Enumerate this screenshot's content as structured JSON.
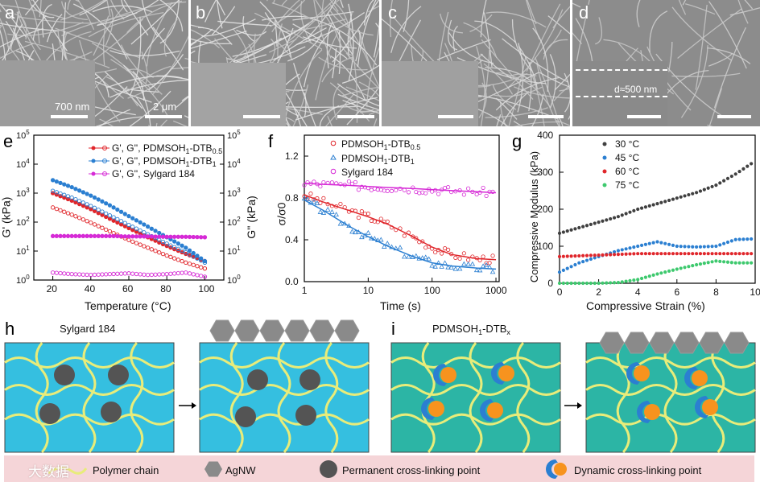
{
  "sem": {
    "panels": [
      {
        "label": "a",
        "scale_inset": "700 nm",
        "scale_main": "2 μm"
      },
      {
        "label": "b"
      },
      {
        "label": "c"
      },
      {
        "label": "d",
        "thickness": "d≈500 nm"
      }
    ]
  },
  "panel_e": {
    "label": "e",
    "ylabel_left": "G' (kPa)",
    "ylabel_right": "G'' (kPa)",
    "xlabel": "Temperature (°C)",
    "legend": [
      "G', G'', PDMSOH",
      "G', G'', PDMSOH",
      "G', G'', Sylgard 184"
    ],
    "legend_suffix": [
      "-DTB",
      "-DTB"
    ],
    "legend_sub": [
      "1",
      "0.5",
      "1",
      "1"
    ]
  },
  "panel_f": {
    "label": "f",
    "ylabel": "σ/σ0",
    "xlabel": "Time (s)",
    "legend": [
      "PDMSOH",
      "PDMSOH",
      "Sylgard 184"
    ],
    "legend_suffix": [
      "-DTB",
      "-DTB"
    ],
    "legend_sub": [
      "1",
      "0.5",
      "1",
      "1"
    ]
  },
  "panel_g": {
    "label": "g",
    "ylabel": "Compressive Modulus (kPa)",
    "xlabel": "Compressive Strain (%)",
    "legend": [
      "30 °C",
      "45 °C",
      "60 °C",
      "75 °C"
    ]
  },
  "panel_h": {
    "label": "h",
    "title": "Sylgard 184"
  },
  "panel_i": {
    "label": "i",
    "title_main": "PDMSOH",
    "title_sub": "1",
    "title_tail": "-DTB",
    "title_sub2": "x"
  },
  "legend_bar": {
    "polymer": "Polymer chain",
    "agnw": "AgNW",
    "permanent": "Permanent cross-linking point",
    "dynamic": "Dynamic cross-linking point"
  },
  "watermark": "大数据",
  "colors": {
    "red": "#e0262b",
    "blue": "#2b7fd1",
    "magenta": "#d62ad6",
    "dark": "#404040",
    "green": "#3ec96e",
    "cyan": "#35bfe0",
    "teal": "#2cb5a5",
    "chain": "#e8ec7a",
    "orange": "#f7931e",
    "node": "#545454"
  },
  "chart_data": [
    {
      "type": "scatter",
      "title": "e",
      "xlabel": "Temperature (°C)",
      "ylabel": "G' (kPa)",
      "xlim": [
        10,
        110
      ],
      "ylim_log10": [
        0,
        5
      ],
      "x": [
        20,
        30,
        40,
        50,
        60,
        70,
        80,
        90,
        100
      ],
      "series": [
        {
          "name": "G' PDMSOH1-DTB0.5",
          "values": [
            1000,
            550,
            280,
            130,
            62,
            30,
            15,
            8,
            4.5
          ]
        },
        {
          "name": "G'' PDMSOH1-DTB0.5",
          "values": [
            320,
            180,
            95,
            48,
            24,
            13,
            7,
            4,
            2.5
          ]
        },
        {
          "name": "G' PDMSOH1-DTB1",
          "values": [
            2800,
            1600,
            820,
            380,
            160,
            70,
            30,
            13,
            4.5
          ]
        },
        {
          "name": "G'' PDMSOH1-DTB1",
          "values": [
            1200,
            700,
            360,
            170,
            80,
            38,
            18,
            9,
            4
          ]
        },
        {
          "name": "G' Sylgard 184",
          "values": [
            33,
            33,
            33,
            33,
            32,
            32,
            31,
            31,
            30
          ]
        },
        {
          "name": "G'' Sylgard 184",
          "values": [
            1.8,
            1.6,
            1.5,
            1.6,
            1.7,
            1.5,
            1.6,
            1.8,
            1.3
          ]
        }
      ]
    },
    {
      "type": "scatter",
      "title": "f",
      "xlabel": "Time (s)",
      "ylabel": "σ/σ0",
      "xlim_log10": [
        0,
        3.05
      ],
      "ylim": [
        0,
        1.4
      ],
      "x": [
        1,
        2,
        5,
        10,
        20,
        50,
        100,
        200,
        500,
        1000
      ],
      "series": [
        {
          "name": "PDMSOH1-DTB0.5",
          "values": [
            0.83,
            0.76,
            0.68,
            0.62,
            0.55,
            0.43,
            0.33,
            0.26,
            0.22,
            0.21
          ]
        },
        {
          "name": "PDMSOH1-DTB1",
          "values": [
            0.78,
            0.68,
            0.53,
            0.43,
            0.34,
            0.24,
            0.18,
            0.15,
            0.13,
            0.12
          ]
        },
        {
          "name": "Sylgard 184",
          "values": [
            0.94,
            0.93,
            0.92,
            0.91,
            0.9,
            0.89,
            0.88,
            0.87,
            0.86,
            0.85
          ]
        }
      ]
    },
    {
      "type": "scatter",
      "title": "g",
      "xlabel": "Compressive Strain (%)",
      "ylabel": "Compressive Modulus (kPa)",
      "xlim": [
        0,
        10
      ],
      "ylim": [
        0,
        400
      ],
      "x": [
        0,
        1,
        2,
        3,
        4,
        5,
        6,
        7,
        8,
        9,
        10
      ],
      "series": [
        {
          "name": "30 °C",
          "values": [
            135,
            150,
            165,
            180,
            200,
            215,
            230,
            245,
            265,
            295,
            330
          ]
        },
        {
          "name": "45 °C",
          "values": [
            30,
            55,
            72,
            88,
            100,
            112,
            100,
            98,
            100,
            118,
            120
          ]
        },
        {
          "name": "60 °C",
          "values": [
            72,
            74,
            76,
            78,
            80,
            80,
            80,
            80,
            80,
            80,
            80
          ]
        },
        {
          "name": "75 °C",
          "values": [
            0,
            0,
            0,
            2,
            10,
            25,
            38,
            50,
            60,
            55,
            55
          ]
        }
      ]
    }
  ]
}
